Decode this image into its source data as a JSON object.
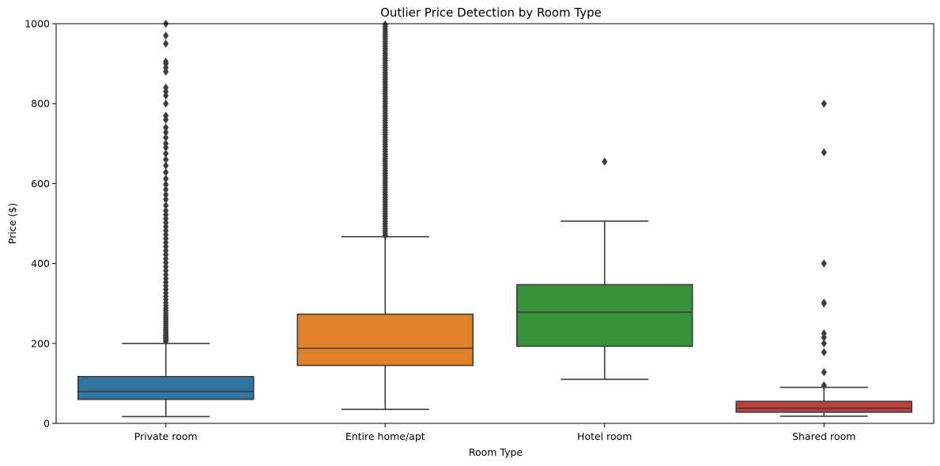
{
  "chart_data": {
    "type": "box",
    "title": "Outlier Price Detection by Room Type",
    "xlabel": "Room Type",
    "ylabel": "Price ($)",
    "ylim": [
      0,
      1000
    ],
    "yticks": [
      0,
      200,
      400,
      600,
      800,
      1000
    ],
    "grid": false,
    "categories": [
      "Private room",
      "Entire home/apt",
      "Hotel room",
      "Shared room"
    ],
    "colors": [
      "#3274a1",
      "#e1812c",
      "#3a923a",
      "#c03d3e"
    ],
    "boxes": [
      {
        "category": "Private room",
        "whisker_low": 17,
        "q1": 60,
        "median": 80,
        "q3": 117,
        "whisker_high": 200,
        "outliers": [
          205,
          208,
          211,
          214,
          217,
          220,
          224,
          228,
          232,
          236,
          240,
          245,
          250,
          255,
          260,
          265,
          270,
          276,
          282,
          288,
          295,
          302,
          310,
          318,
          326,
          335,
          344,
          353,
          362,
          372,
          382,
          392,
          402,
          412,
          422,
          432,
          442,
          452,
          462,
          472,
          482,
          492,
          502,
          512,
          522,
          532,
          545,
          560,
          572,
          585,
          598,
          612,
          628,
          645,
          660,
          675,
          690,
          700,
          715,
          728,
          740,
          760,
          770,
          800,
          820,
          830,
          840,
          880,
          890,
          900,
          905,
          950,
          970,
          1000
        ]
      },
      {
        "category": "Entire home/apt",
        "whisker_low": 35,
        "q1": 145,
        "median": 188,
        "q3": 273,
        "whisker_high": 467,
        "outliers": [
          470,
          476,
          482,
          488,
          494,
          500,
          506,
          512,
          518,
          524,
          530,
          536,
          542,
          548,
          554,
          560,
          566,
          572,
          578,
          584,
          590,
          596,
          602,
          608,
          614,
          620,
          626,
          632,
          638,
          644,
          650,
          656,
          662,
          668,
          674,
          680,
          686,
          692,
          698,
          704,
          710,
          716,
          722,
          728,
          734,
          740,
          746,
          752,
          758,
          764,
          770,
          776,
          782,
          788,
          794,
          800,
          806,
          812,
          818,
          824,
          830,
          836,
          842,
          848,
          854,
          860,
          866,
          872,
          878,
          884,
          890,
          896,
          902,
          908,
          914,
          920,
          926,
          932,
          938,
          944,
          950,
          956,
          962,
          968,
          974,
          980,
          986,
          992,
          998
        ]
      },
      {
        "category": "Hotel room",
        "whisker_low": 110,
        "q1": 193,
        "median": 278,
        "q3": 347,
        "whisker_high": 506,
        "outliers": [
          655
        ]
      },
      {
        "category": "Shared room",
        "whisker_low": 18,
        "q1": 28,
        "median": 38,
        "q3": 55,
        "whisker_high": 90,
        "outliers": [
          95,
          128,
          178,
          200,
          215,
          225,
          300,
          302,
          400,
          678,
          800
        ]
      }
    ]
  }
}
